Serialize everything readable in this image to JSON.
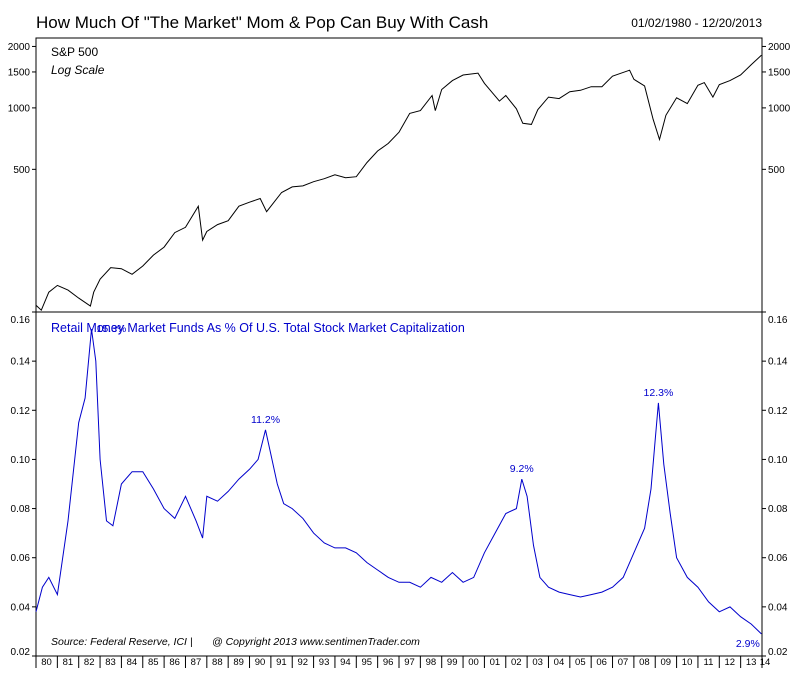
{
  "header": {
    "title": "How Much Of \"The Market\" Mom & Pop Can Buy With Cash",
    "date_range": "01/02/1980 - 12/20/2013"
  },
  "footer": {
    "source": "Source:  Federal Reserve, ICI  |",
    "copyright": "@ Copyright 2013   www.sentimenTrader.com"
  },
  "chart_data": [
    {
      "type": "line",
      "title": "S&P 500",
      "subtitle": "Log Scale",
      "scale": "log",
      "ylim": [
        100,
        2200
      ],
      "y_ticks": [
        500,
        1000,
        1500,
        2000
      ],
      "color": "#000000",
      "series": [
        {
          "x": [
            1980.0,
            1980.25,
            1980.6,
            1981.0,
            1981.5,
            1982.0,
            1982.55,
            1982.7,
            1983.0,
            1983.5,
            1984.0,
            1984.5,
            1985.0,
            1985.5,
            1986.0,
            1986.5,
            1987.0,
            1987.6,
            1987.8,
            1988.0,
            1988.5,
            1989.0,
            1989.5,
            1990.0,
            1990.5,
            1990.8,
            1991.0,
            1991.5,
            1992.0,
            1992.5,
            1993.0,
            1993.5,
            1994.0,
            1994.5,
            1995.0,
            1995.5,
            1996.0,
            1996.5,
            1997.0,
            1997.5,
            1998.0,
            1998.55,
            1998.7,
            1999.0,
            1999.5,
            2000.0,
            2000.7,
            2001.0,
            2001.7,
            2002.0,
            2002.5,
            2002.8,
            2003.2,
            2003.5,
            2004.0,
            2004.5,
            2005.0,
            2005.5,
            2006.0,
            2006.5,
            2007.0,
            2007.8,
            2008.0,
            2008.5,
            2008.9,
            2009.2,
            2009.5,
            2010.0,
            2010.5,
            2011.0,
            2011.3,
            2011.7,
            2012.0,
            2012.5,
            2013.0,
            2013.5,
            2013.97
          ],
          "values": [
            108,
            102,
            125,
            135,
            128,
            117,
            107,
            125,
            145,
            165,
            163,
            153,
            168,
            190,
            208,
            245,
            260,
            330,
            225,
            248,
            268,
            280,
            330,
            345,
            360,
            310,
            330,
            385,
            410,
            415,
            435,
            450,
            470,
            455,
            460,
            540,
            615,
            670,
            760,
            940,
            970,
            1150,
            970,
            1230,
            1360,
            1450,
            1480,
            1320,
            1080,
            1150,
            990,
            840,
            830,
            980,
            1130,
            1110,
            1200,
            1220,
            1270,
            1270,
            1430,
            1530,
            1380,
            1280,
            880,
            700,
            920,
            1120,
            1050,
            1290,
            1330,
            1130,
            1300,
            1360,
            1450,
            1630,
            1810
          ]
        }
      ]
    },
    {
      "type": "line",
      "title": "Retail Money Market Funds As % Of U.S. Total Stock Market Capitalization",
      "ylim": [
        0.02,
        0.16
      ],
      "y_ticks": [
        0.02,
        0.04,
        0.06,
        0.08,
        0.1,
        0.12,
        0.14,
        0.16
      ],
      "y_tick_labels": [
        "0.02",
        "0.04",
        "0.06",
        "0.08",
        "0.10",
        "0.12",
        "0.14",
        "0.16"
      ],
      "color": "#0000cc",
      "x_tick_labels": [
        "80",
        "81",
        "82",
        "83",
        "84",
        "85",
        "86",
        "87",
        "88",
        "89",
        "90",
        "91",
        "92",
        "93",
        "94",
        "95",
        "96",
        "97",
        "98",
        "99",
        "00",
        "01",
        "02",
        "03",
        "04",
        "05",
        "06",
        "07",
        "08",
        "09",
        "10",
        "11",
        "12",
        "13",
        "14"
      ],
      "annotations": [
        {
          "label": "15.3%",
          "x": 1982.6,
          "y": 0.153
        },
        {
          "label": "11.2%",
          "x": 1990.75,
          "y": 0.112
        },
        {
          "label": "9.2%",
          "x": 2002.75,
          "y": 0.092
        },
        {
          "label": "12.3%",
          "x": 2009.15,
          "y": 0.123
        },
        {
          "label": "2.9%",
          "x": 2013.9,
          "y": 0.029
        }
      ],
      "series": [
        {
          "x": [
            1980.0,
            1980.3,
            1980.6,
            1981.0,
            1981.5,
            1982.0,
            1982.3,
            1982.6,
            1982.8,
            1983.0,
            1983.3,
            1983.6,
            1984.0,
            1984.5,
            1985.0,
            1985.5,
            1986.0,
            1986.5,
            1987.0,
            1987.5,
            1987.8,
            1988.0,
            1988.5,
            1989.0,
            1989.5,
            1990.0,
            1990.4,
            1990.75,
            1991.0,
            1991.3,
            1991.6,
            1992.0,
            1992.5,
            1993.0,
            1993.5,
            1994.0,
            1994.5,
            1995.0,
            1995.5,
            1996.0,
            1996.5,
            1997.0,
            1997.5,
            1998.0,
            1998.5,
            1999.0,
            1999.5,
            2000.0,
            2000.5,
            2001.0,
            2001.5,
            2002.0,
            2002.5,
            2002.75,
            2003.0,
            2003.3,
            2003.6,
            2004.0,
            2004.5,
            2005.0,
            2005.5,
            2006.0,
            2006.5,
            2007.0,
            2007.5,
            2008.0,
            2008.5,
            2008.8,
            2009.0,
            2009.15,
            2009.4,
            2009.7,
            2010.0,
            2010.5,
            2011.0,
            2011.5,
            2012.0,
            2012.5,
            2013.0,
            2013.5,
            2013.97
          ],
          "values": [
            0.038,
            0.048,
            0.052,
            0.045,
            0.075,
            0.115,
            0.125,
            0.153,
            0.14,
            0.1,
            0.075,
            0.073,
            0.09,
            0.095,
            0.095,
            0.088,
            0.08,
            0.076,
            0.085,
            0.075,
            0.068,
            0.085,
            0.083,
            0.087,
            0.092,
            0.096,
            0.1,
            0.112,
            0.102,
            0.09,
            0.082,
            0.08,
            0.076,
            0.07,
            0.066,
            0.064,
            0.064,
            0.062,
            0.058,
            0.055,
            0.052,
            0.05,
            0.05,
            0.048,
            0.052,
            0.05,
            0.054,
            0.05,
            0.052,
            0.062,
            0.07,
            0.078,
            0.08,
            0.092,
            0.085,
            0.065,
            0.052,
            0.048,
            0.046,
            0.045,
            0.044,
            0.045,
            0.046,
            0.048,
            0.052,
            0.062,
            0.072,
            0.088,
            0.108,
            0.123,
            0.098,
            0.078,
            0.06,
            0.052,
            0.048,
            0.042,
            0.038,
            0.04,
            0.036,
            0.033,
            0.029
          ]
        }
      ]
    }
  ]
}
